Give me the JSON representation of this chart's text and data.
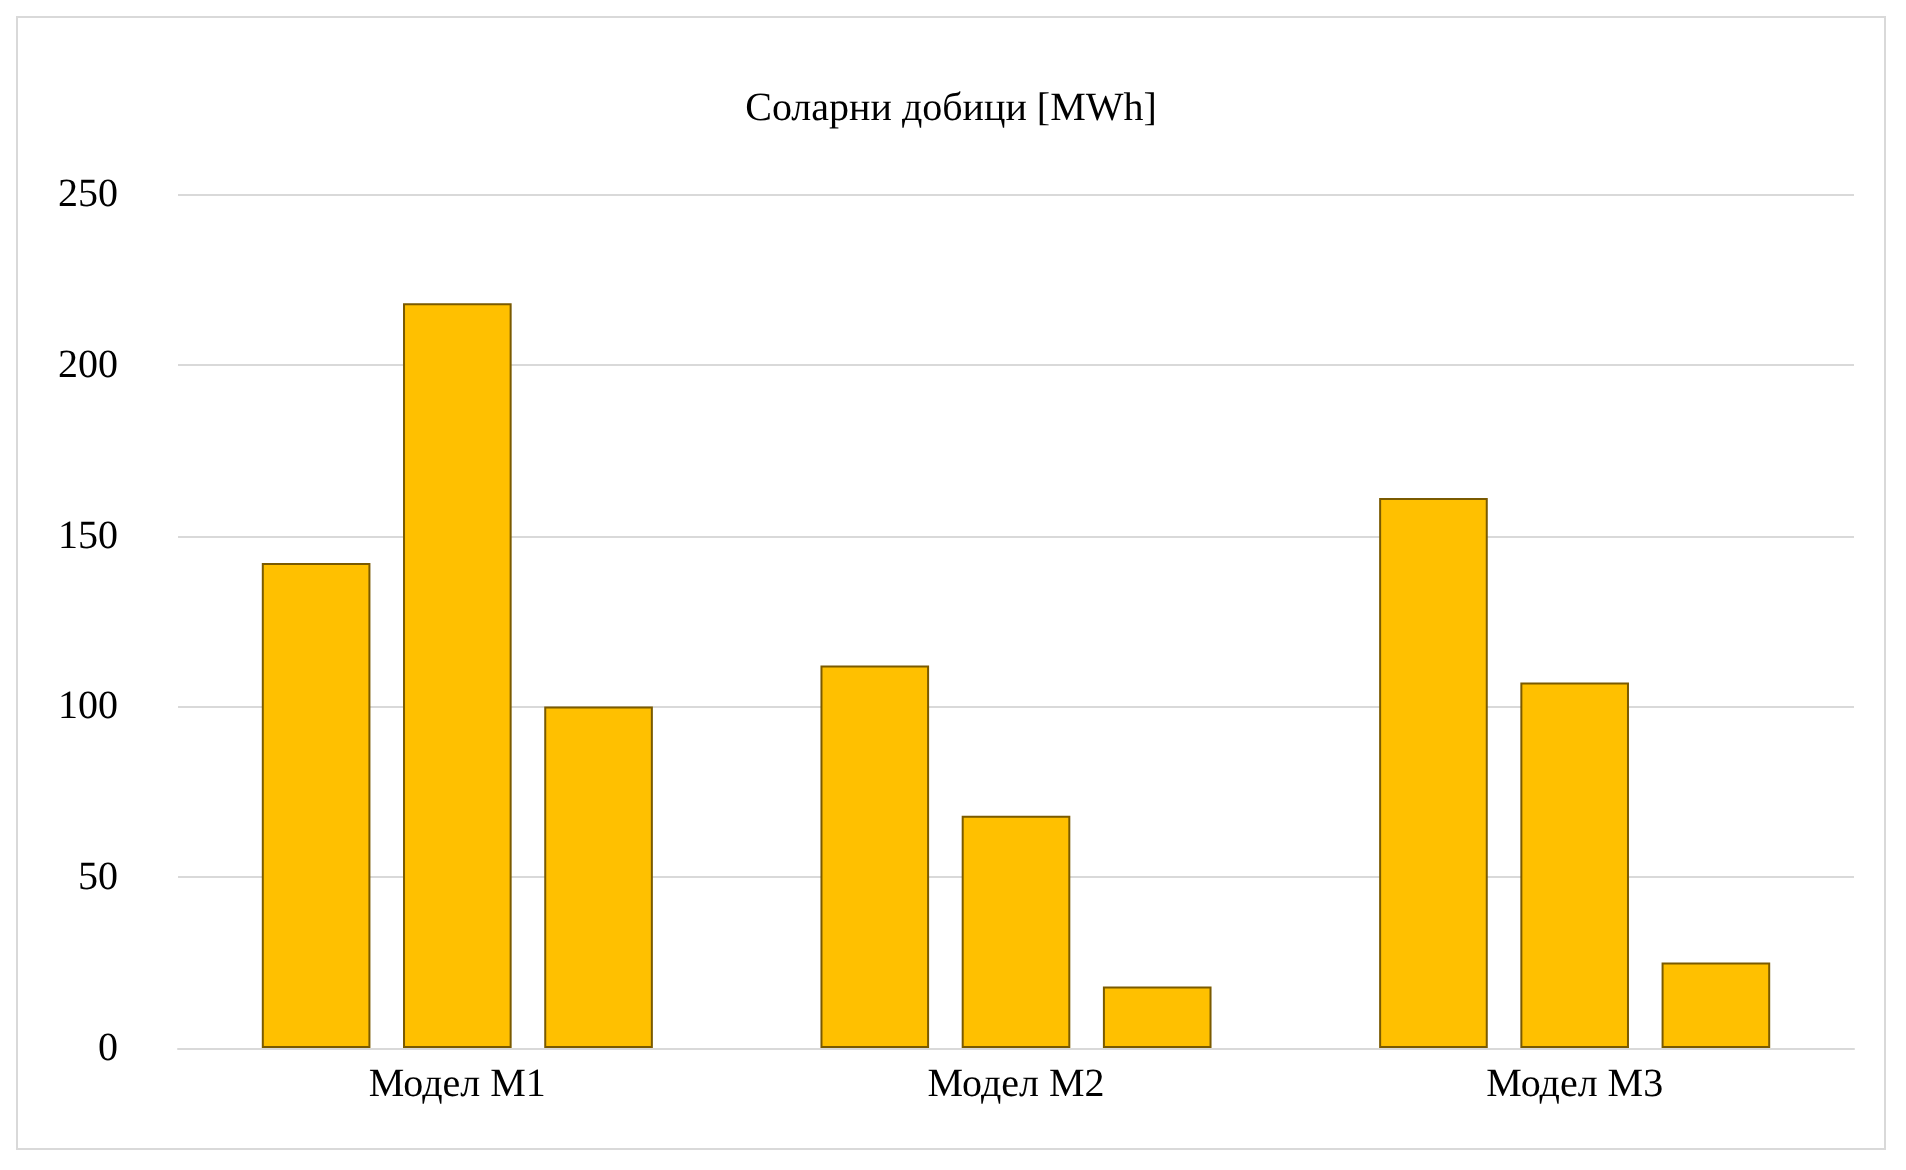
{
  "chart_data": {
    "type": "bar",
    "title": "Соларни добици [MWh]",
    "categories": [
      "Модел M1",
      "Модел M2",
      "Модел M3"
    ],
    "series": [
      {
        "color": "#ffc000",
        "values": [
          142,
          112,
          161
        ]
      },
      {
        "color": "#ffc000",
        "values": [
          218,
          68,
          107
        ]
      },
      {
        "color": "#ffc000",
        "values": [
          100,
          18,
          25
        ]
      }
    ],
    "ylim": [
      0,
      250
    ],
    "yticks": [
      0,
      50,
      100,
      150,
      200,
      250
    ],
    "grid": "y"
  }
}
